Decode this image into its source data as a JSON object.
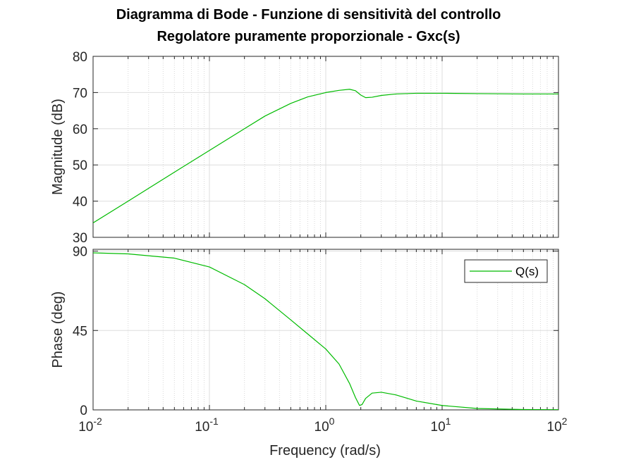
{
  "chart_data": {
    "type": "line",
    "title": [
      "Diagramma di Bode - Funzione di sensitività del controllo",
      "Regolatore puramente proporzionale - Gxc(s)"
    ],
    "xlabel": "Frequency  (rad/s)",
    "xscale": "log",
    "xlim": [
      0.01,
      100
    ],
    "x_ticks": [
      {
        "base": "10",
        "exp": "-2"
      },
      {
        "base": "10",
        "exp": "-1"
      },
      {
        "base": "10",
        "exp": "0"
      },
      {
        "base": "10",
        "exp": "1"
      },
      {
        "base": "10",
        "exp": "2"
      }
    ],
    "grid": true,
    "line_color": "#00bb00",
    "panels": [
      {
        "name": "magnitude",
        "ylabel": "Magnitude (dB)",
        "ylim": [
          30,
          80
        ],
        "y_ticks": [
          "30",
          "40",
          "50",
          "60",
          "70",
          "80"
        ],
        "series": [
          {
            "x": [
              0.01,
              0.02,
              0.05,
              0.1,
              0.2,
              0.3,
              0.5,
              0.7,
              1.0,
              1.3,
              1.6,
              1.8,
              2.0,
              2.2,
              2.5,
              3.0,
              4.0,
              6.0,
              10,
              20,
              50,
              100
            ],
            "values": [
              34.0,
              40.0,
              48.0,
              54.0,
              60.0,
              63.5,
              67.0,
              68.8,
              70.0,
              70.6,
              70.9,
              70.5,
              69.3,
              68.6,
              68.7,
              69.2,
              69.6,
              69.8,
              69.8,
              69.7,
              69.6,
              69.6
            ]
          }
        ]
      },
      {
        "name": "phase",
        "ylabel": "Phase (deg)",
        "ylim": [
          0,
          91
        ],
        "y_ticks": [
          "0",
          "45",
          "90"
        ],
        "legend": {
          "position": "top-right",
          "entries": [
            "Q(s)"
          ]
        },
        "series": [
          {
            "name": "Q(s)",
            "x": [
              0.01,
              0.02,
              0.05,
              0.1,
              0.2,
              0.3,
              0.5,
              0.7,
              1.0,
              1.3,
              1.6,
              1.8,
              1.95,
              2.05,
              2.2,
              2.5,
              3.0,
              4.0,
              6.0,
              10,
              20,
              50,
              100
            ],
            "values": [
              89.0,
              88.4,
              86.0,
              81.0,
              71.0,
              63.0,
              51.0,
              43.0,
              34.5,
              26.0,
              15.0,
              7.0,
              2.5,
              3.0,
              6.5,
              9.5,
              10.0,
              8.5,
              5.0,
              2.5,
              0.8,
              0.2,
              0.1
            ]
          }
        ]
      }
    ]
  }
}
